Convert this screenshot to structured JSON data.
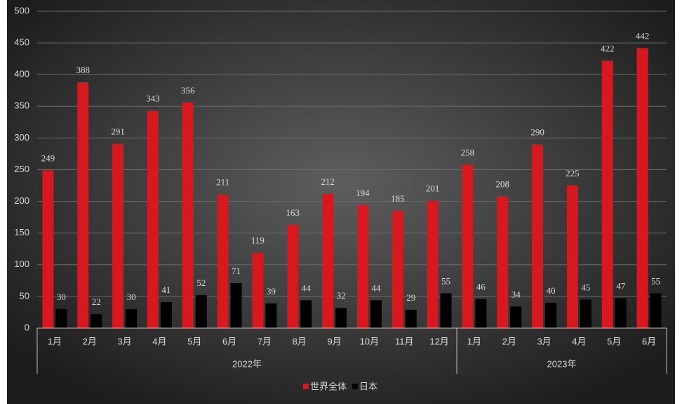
{
  "chart_data": {
    "type": "grouped_bar",
    "groups": [
      {
        "name": "2022年",
        "categories": [
          "1月",
          "2月",
          "3月",
          "4月",
          "5月",
          "6月",
          "7月",
          "8月",
          "9月",
          "10月",
          "11月",
          "12月"
        ]
      },
      {
        "name": "2023年",
        "categories": [
          "1月",
          "2月",
          "3月",
          "4月",
          "5月",
          "6月"
        ]
      }
    ],
    "series": [
      {
        "name": "世界全体",
        "color": "#d7191f",
        "values": [
          249,
          388,
          291,
          343,
          356,
          211,
          119,
          163,
          212,
          194,
          185,
          201,
          258,
          208,
          290,
          225,
          422,
          442
        ]
      },
      {
        "name": "日本",
        "color": "#000000",
        "values": [
          30,
          22,
          30,
          41,
          52,
          71,
          39,
          44,
          32,
          44,
          29,
          55,
          46,
          34,
          40,
          45,
          47,
          55
        ]
      }
    ],
    "ylim": [
      0,
      500
    ],
    "yticks": [
      0,
      50,
      100,
      150,
      200,
      250,
      300,
      350,
      400,
      450,
      500
    ],
    "grid": true,
    "legend": "bottom"
  }
}
